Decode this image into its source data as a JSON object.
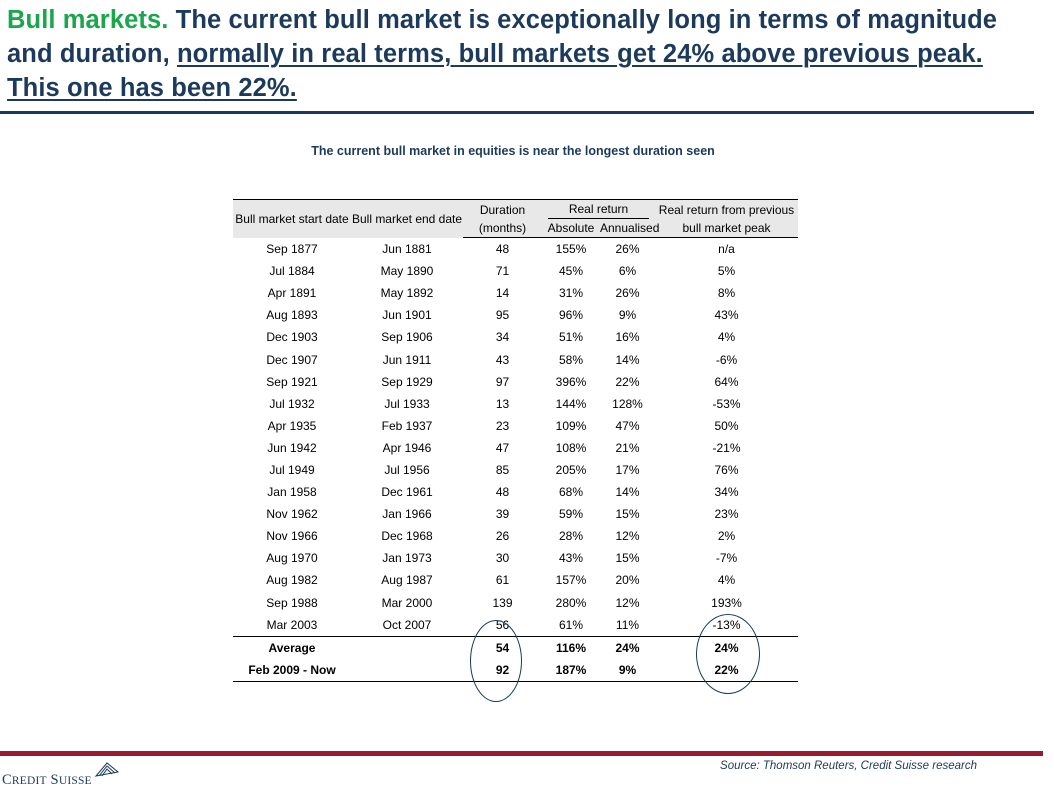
{
  "headline": {
    "lead": "Bull markets.",
    "part1": " The current bull market is exceptionally long in terms of magnitude and duration, ",
    "underlined": "normally in real terms, bull markets get 24% above previous peak. This one has been 22%."
  },
  "table_title": "The current bull market in equities is near the longest duration seen",
  "table": {
    "headers": {
      "start": "Bull market start date",
      "end": "Bull market end date",
      "duration_1": "Duration",
      "duration_2": "(months)",
      "real_return": "Real return",
      "absolute": "Absolute",
      "annualised": "Annualised",
      "prev_1": "Real return from previous",
      "prev_2": "bull market peak"
    },
    "rows": [
      {
        "start": "Sep 1877",
        "end": "Jun 1881",
        "duration": "48",
        "absolute": "155%",
        "annualised": "26%",
        "prev": "n/a"
      },
      {
        "start": "Jul 1884",
        "end": "May 1890",
        "duration": "71",
        "absolute": "45%",
        "annualised": "6%",
        "prev": "5%"
      },
      {
        "start": "Apr 1891",
        "end": "May 1892",
        "duration": "14",
        "absolute": "31%",
        "annualised": "26%",
        "prev": "8%"
      },
      {
        "start": "Aug 1893",
        "end": "Jun 1901",
        "duration": "95",
        "absolute": "96%",
        "annualised": "9%",
        "prev": "43%"
      },
      {
        "start": "Dec 1903",
        "end": "Sep 1906",
        "duration": "34",
        "absolute": "51%",
        "annualised": "16%",
        "prev": "4%"
      },
      {
        "start": "Dec 1907",
        "end": "Jun 1911",
        "duration": "43",
        "absolute": "58%",
        "annualised": "14%",
        "prev": "-6%"
      },
      {
        "start": "Sep 1921",
        "end": "Sep 1929",
        "duration": "97",
        "absolute": "396%",
        "annualised": "22%",
        "prev": "64%"
      },
      {
        "start": "Jul 1932",
        "end": "Jul 1933",
        "duration": "13",
        "absolute": "144%",
        "annualised": "128%",
        "prev": "-53%"
      },
      {
        "start": "Apr 1935",
        "end": "Feb 1937",
        "duration": "23",
        "absolute": "109%",
        "annualised": "47%",
        "prev": "50%"
      },
      {
        "start": "Jun 1942",
        "end": "Apr 1946",
        "duration": "47",
        "absolute": "108%",
        "annualised": "21%",
        "prev": "-21%"
      },
      {
        "start": "Jul 1949",
        "end": "Jul 1956",
        "duration": "85",
        "absolute": "205%",
        "annualised": "17%",
        "prev": "76%"
      },
      {
        "start": "Jan 1958",
        "end": "Dec 1961",
        "duration": "48",
        "absolute": "68%",
        "annualised": "14%",
        "prev": "34%"
      },
      {
        "start": "Nov 1962",
        "end": "Jan 1966",
        "duration": "39",
        "absolute": "59%",
        "annualised": "15%",
        "prev": "23%"
      },
      {
        "start": "Nov 1966",
        "end": "Dec 1968",
        "duration": "26",
        "absolute": "28%",
        "annualised": "12%",
        "prev": "2%"
      },
      {
        "start": "Aug 1970",
        "end": "Jan 1973",
        "duration": "30",
        "absolute": "43%",
        "annualised": "15%",
        "prev": "-7%"
      },
      {
        "start": "Aug 1982",
        "end": "Aug 1987",
        "duration": "61",
        "absolute": "157%",
        "annualised": "20%",
        "prev": "4%"
      },
      {
        "start": "Sep 1988",
        "end": "Mar 2000",
        "duration": "139",
        "absolute": "280%",
        "annualised": "12%",
        "prev": "193%"
      },
      {
        "start": "Mar 2003",
        "end": "Oct 2007",
        "duration": "56",
        "absolute": "61%",
        "annualised": "11%",
        "prev": "-13%"
      }
    ],
    "summary": [
      {
        "start": "Average",
        "end": "",
        "duration": "54",
        "absolute": "116%",
        "annualised": "24%",
        "prev": "24%"
      },
      {
        "start": "Feb 2009 - Now",
        "end": "",
        "duration": "92",
        "absolute": "187%",
        "annualised": "9%",
        "prev": "22%"
      }
    ]
  },
  "source": "Source: Thomson Reuters, Credit Suisse research",
  "logo_text": "Credit Suisse",
  "colors": {
    "navy": "#1b3a5c",
    "green": "#1aa64a",
    "burgundy": "#9a1b2e"
  }
}
